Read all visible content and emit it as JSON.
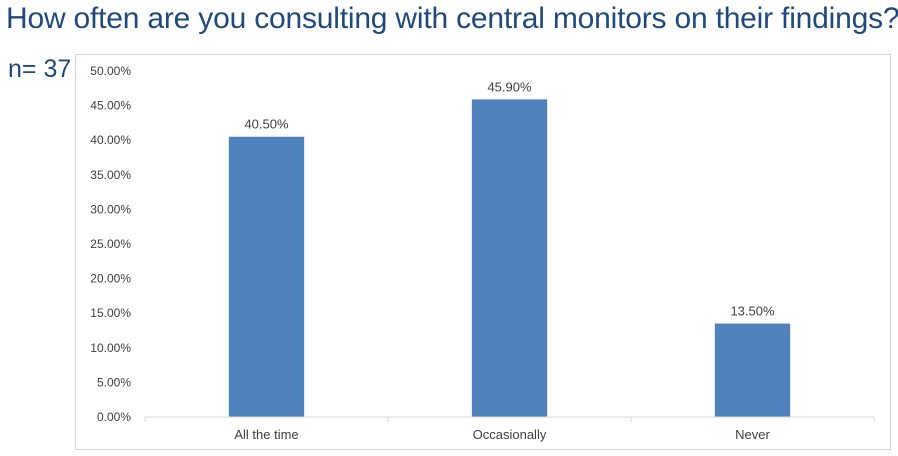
{
  "slide": {
    "title": "How often are you consulting with central monitors on their findings?",
    "sample_size": "n= 37"
  },
  "colors": {
    "title": "#1f497d",
    "bar": "#4f81bd",
    "axis": "#d9d9d9",
    "text": "#404040"
  },
  "chart_data": {
    "type": "bar",
    "title": "",
    "xlabel": "",
    "ylabel": "",
    "categories": [
      "All the time",
      "Occasionally",
      "Never"
    ],
    "values": [
      40.5,
      45.9,
      13.5
    ],
    "data_labels": [
      "40.50%",
      "45.90%",
      "13.50%"
    ],
    "ylim": [
      0,
      50
    ],
    "y_ticks": [
      0,
      5,
      10,
      15,
      20,
      25,
      30,
      35,
      40,
      45,
      50
    ],
    "y_tick_labels": [
      "0.00%",
      "5.00%",
      "10.00%",
      "15.00%",
      "20.00%",
      "25.00%",
      "30.00%",
      "35.00%",
      "40.00%",
      "45.00%",
      "50.00%"
    ],
    "grid": false,
    "legend": "none"
  }
}
